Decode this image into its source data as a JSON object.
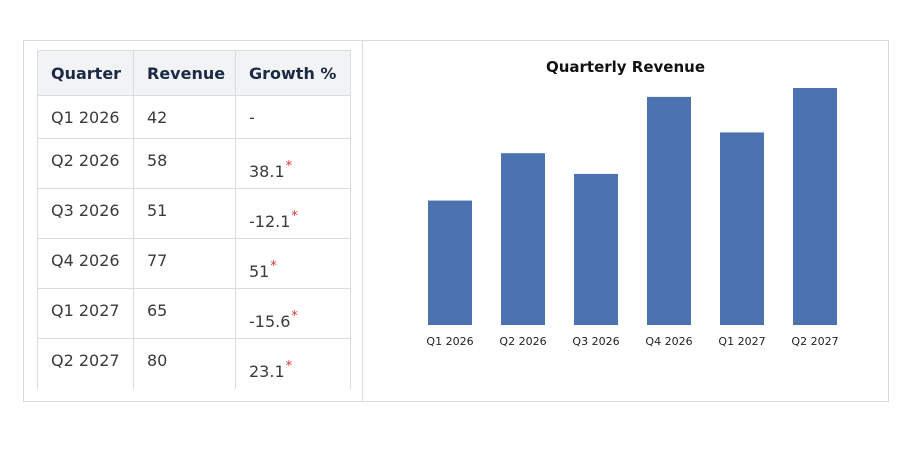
{
  "table": {
    "headers": [
      "Quarter",
      "Revenue",
      "Growth %"
    ],
    "rows": [
      {
        "quarter": "Q1 2026",
        "revenue": "42",
        "growth": "-",
        "marked": false
      },
      {
        "quarter": "Q2 2026",
        "revenue": "58",
        "growth": "38.1",
        "marked": true
      },
      {
        "quarter": "Q3 2026",
        "revenue": "51",
        "growth": "-12.1",
        "marked": true
      },
      {
        "quarter": "Q4 2026",
        "revenue": "77",
        "growth": "51",
        "marked": true
      },
      {
        "quarter": "Q1 2027",
        "revenue": "65",
        "growth": "-15.6",
        "marked": true
      },
      {
        "quarter": "Q2 2027",
        "revenue": "80",
        "growth": "23.1",
        "marked": true
      }
    ],
    "marker_symbol": "*"
  },
  "chart_data": {
    "type": "bar",
    "title": "Quarterly Revenue",
    "categories": [
      "Q1 2026",
      "Q2 2026",
      "Q3 2026",
      "Q4 2026",
      "Q1 2027",
      "Q2 2027"
    ],
    "values": [
      42,
      58,
      51,
      77,
      65,
      80
    ],
    "xlabel": "",
    "ylabel": "",
    "ylim": [
      0,
      80
    ],
    "grid": false,
    "legend": "none",
    "bar_color": "#4c72b0"
  },
  "colors": {
    "header_bg": "#f2f3f5",
    "header_text": "#1c2a45",
    "marker": "#d9362b",
    "border": "#dcdcdc"
  }
}
